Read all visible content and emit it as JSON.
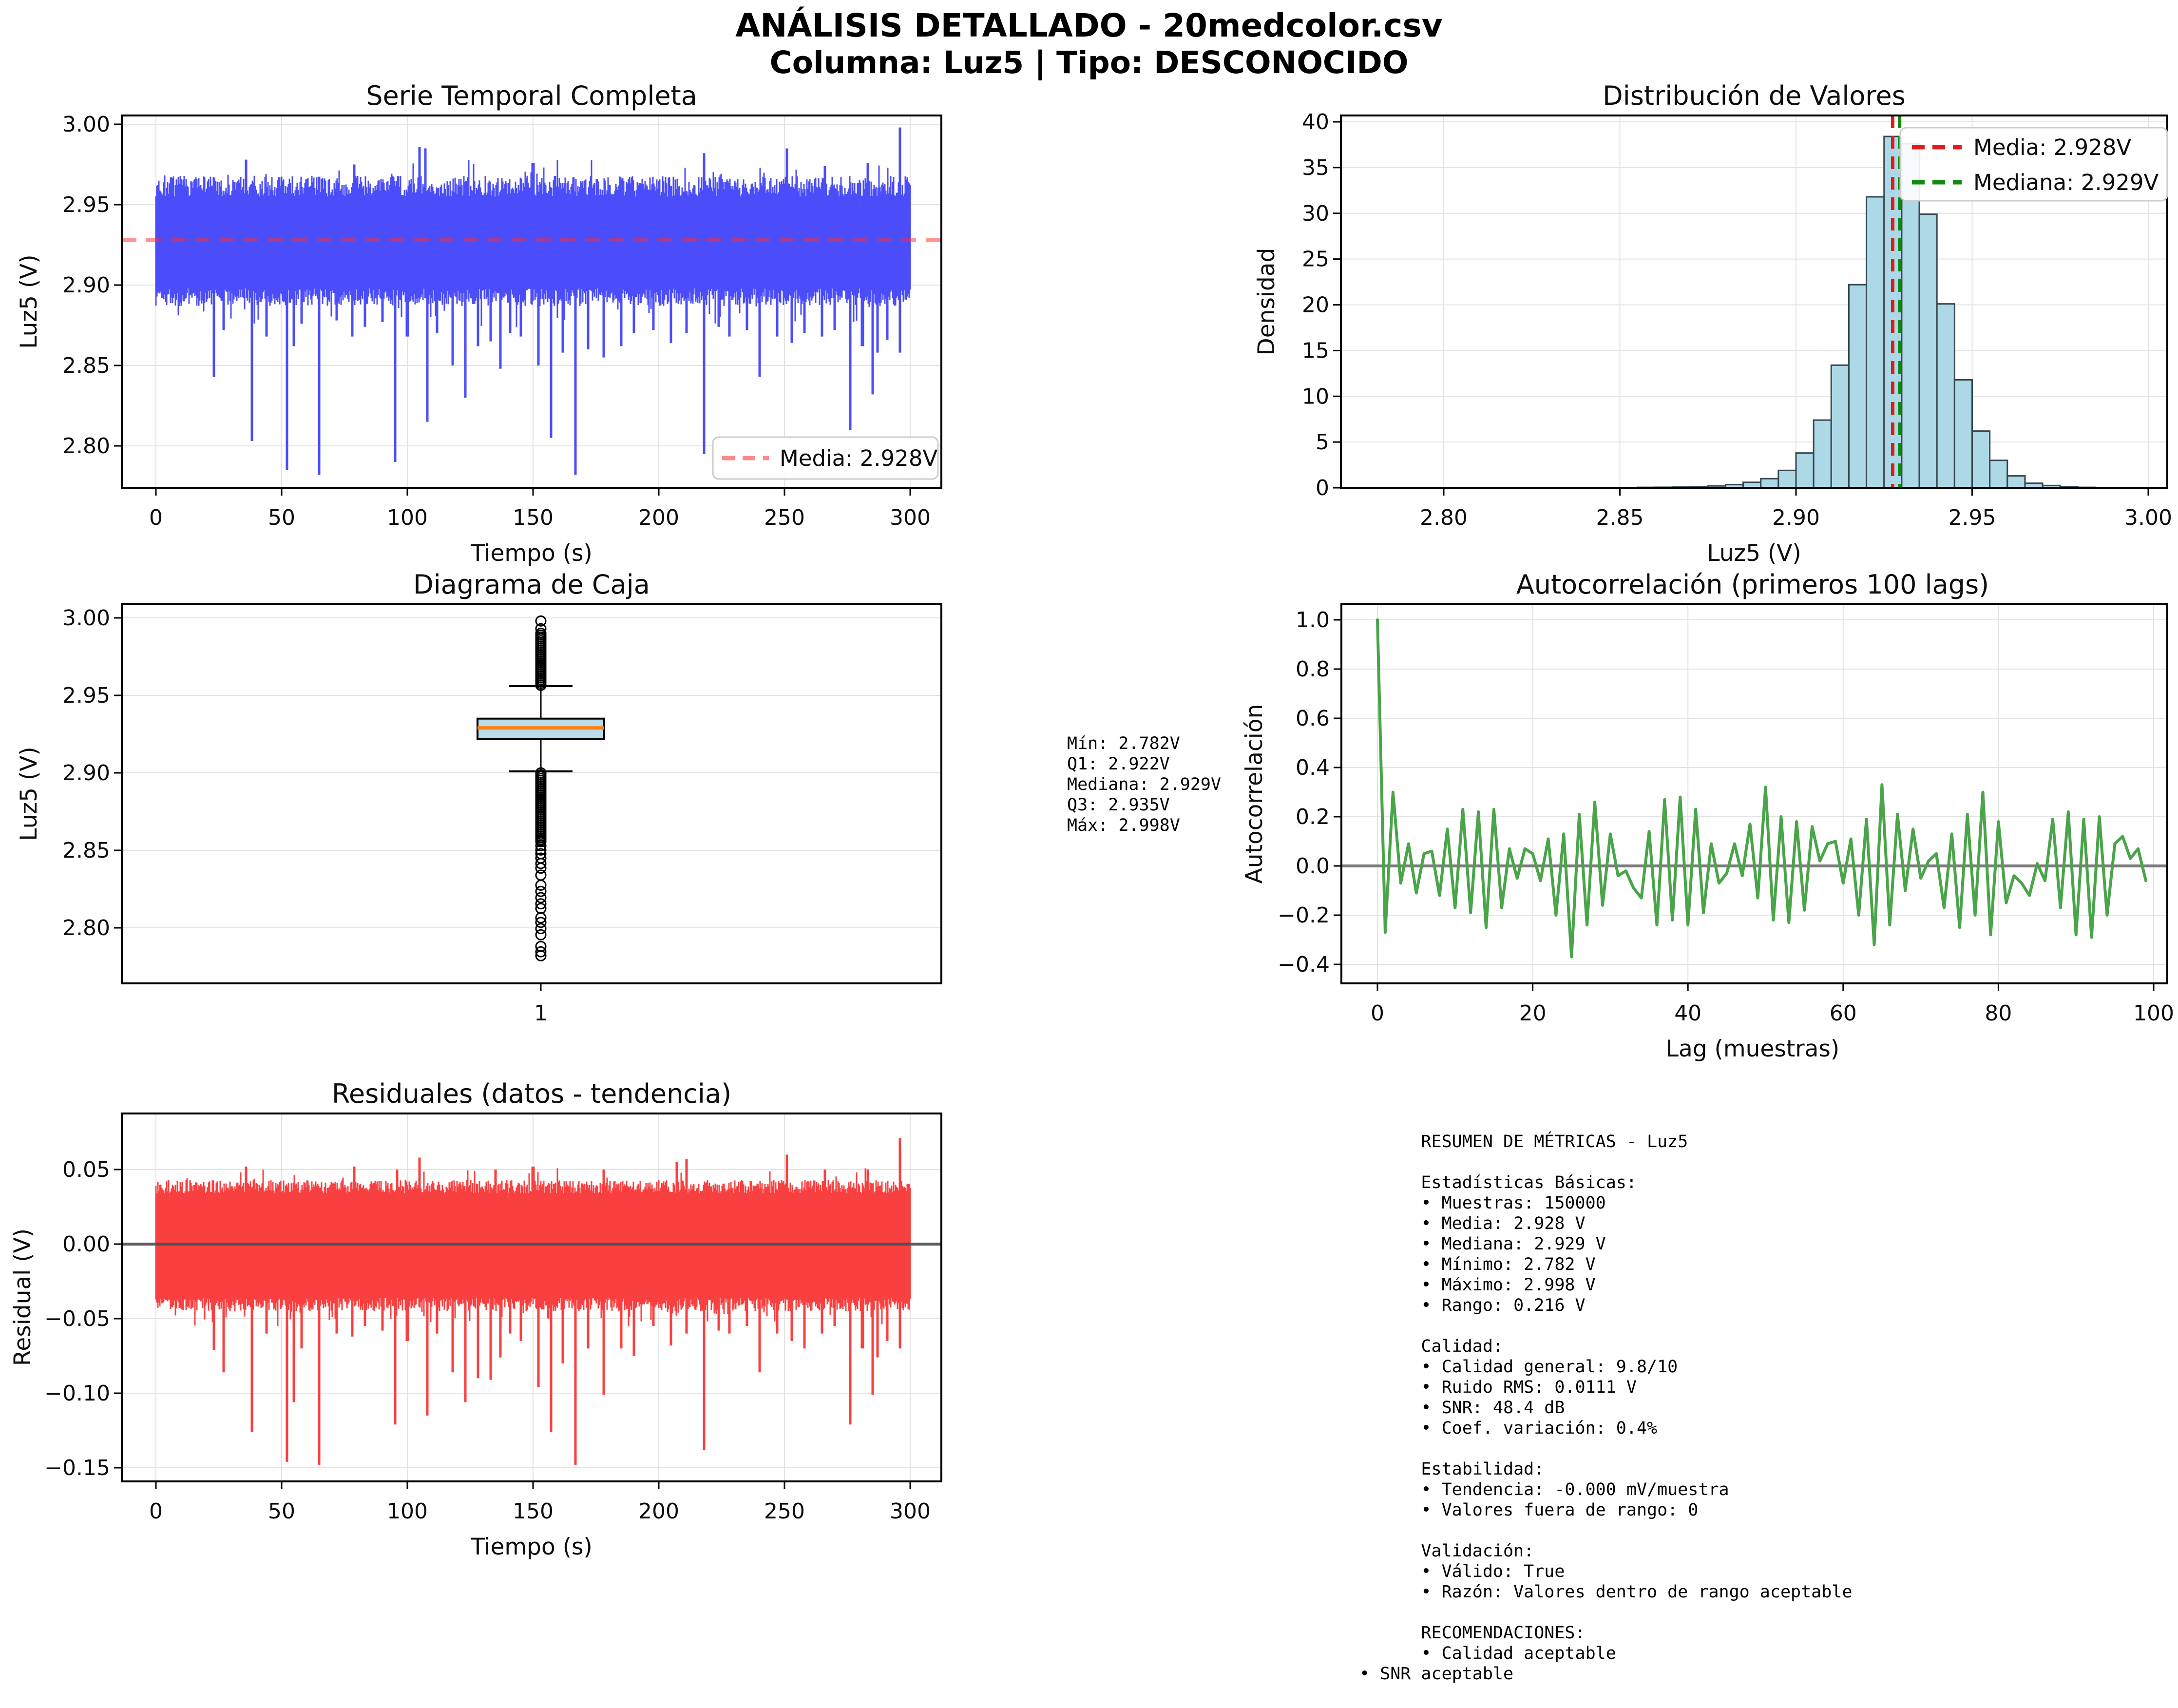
{
  "header": {
    "title1": "ANÁLISIS DETALLADO - 20medcolor.csv",
    "title2": "Columna: Luz5 | Tipo: DESCONOCIDO"
  },
  "colors": {
    "series_blue": "#4b4dfa",
    "mean_dash_red": "#ff2a2a",
    "mean_dash_on_white": "#fa8a8a",
    "hist_fill": "#add8e6",
    "hist_edge": "#37474f",
    "hist_mean_red": "#e01b1c",
    "hist_median_green": "#0f8a0f",
    "box_fill": "#b8dcea",
    "box_median_orange": "#ff7f0e",
    "acf_green": "#4aa44a",
    "residual_red": "#f94040",
    "zero_line_gray": "#7a7a7a",
    "grid_gray": "#e3e3e3",
    "spine_black": "#000000",
    "legend_border": "#cccccc"
  },
  "box_stats_text": "Mín: 2.782V\nQ1: 2.922V\nMediana: 2.929V\nQ3: 2.935V\nMáx: 2.998V",
  "metrics_text": "      RESUMEN DE MÉTRICAS - Luz5\n\n      Estadísticas Básicas:\n      • Muestras: 150000\n      • Media: 2.928 V\n      • Mediana: 2.929 V\n      • Mínimo: 2.782 V\n      • Máximo: 2.998 V\n      • Rango: 0.216 V\n\n      Calidad:\n      • Calidad general: 9.8/10\n      • Ruido RMS: 0.0111 V\n      • SNR: 48.4 dB\n      • Coef. variación: 0.4%\n\n      Estabilidad:\n      • Tendencia: -0.000 mV/muestra\n      • Valores fuera de rango: 0\n\n      Validación:\n      • Válido: True\n      • Razón: Valores dentro de rango aceptable\n\n      RECOMENDACIONES:\n      • Calidad aceptable\n• SNR aceptable",
  "chart_data": [
    {
      "id": "ts",
      "type": "line-band",
      "title": "Serie Temporal Completa",
      "xlabel": "Tiempo (s)",
      "ylabel": "Luz5 (V)",
      "xlim": [
        -13.6,
        312.4
      ],
      "ylim": [
        2.774,
        3.006
      ],
      "xticks": {
        "values": [
          0,
          50,
          100,
          150,
          200,
          250,
          300
        ],
        "labels": [
          "0",
          "50",
          "100",
          "150",
          "200",
          "250",
          "300"
        ]
      },
      "yticks": {
        "values": [
          2.8,
          2.85,
          2.9,
          2.95,
          3.0
        ],
        "labels": [
          "2.80",
          "2.85",
          "2.90",
          "2.95",
          "3.00"
        ]
      },
      "mean": 2.928,
      "legend": [
        {
          "label": "Media: 2.928V",
          "color": "#fa8a8a",
          "dash": true
        }
      ],
      "band": {
        "seed": 7,
        "x_start": 0,
        "x_end": 300,
        "top_base": 2.955,
        "top_jitter": 0.013,
        "top_extra": 0.014,
        "bottom_base": 2.898,
        "bottom_jitter": 0.011,
        "bottom_extra": 0.016
      },
      "spikes_down": [
        [
          23,
          2.843
        ],
        [
          27,
          2.872
        ],
        [
          38,
          2.803
        ],
        [
          44,
          2.868
        ],
        [
          52,
          2.785
        ],
        [
          55,
          2.862
        ],
        [
          58,
          2.876
        ],
        [
          65,
          2.782
        ],
        [
          72,
          2.878
        ],
        [
          78,
          2.868
        ],
        [
          83,
          2.874
        ],
        [
          90,
          2.877
        ],
        [
          95,
          2.79
        ],
        [
          100,
          2.868
        ],
        [
          108,
          2.815
        ],
        [
          112,
          2.87
        ],
        [
          118,
          2.85
        ],
        [
          123,
          2.83
        ],
        [
          128,
          2.862
        ],
        [
          133,
          2.865
        ],
        [
          137,
          2.848
        ],
        [
          141,
          2.87
        ],
        [
          145,
          2.868
        ],
        [
          152,
          2.85
        ],
        [
          157,
          2.805
        ],
        [
          162,
          2.858
        ],
        [
          167,
          2.782
        ],
        [
          172,
          2.86
        ],
        [
          178,
          2.855
        ],
        [
          185,
          2.862
        ],
        [
          190,
          2.87
        ],
        [
          198,
          2.872
        ],
        [
          205,
          2.864
        ],
        [
          211,
          2.87
        ],
        [
          218,
          2.795
        ],
        [
          224,
          2.874
        ],
        [
          228,
          2.868
        ],
        [
          235,
          2.872
        ],
        [
          240,
          2.843
        ],
        [
          247,
          2.868
        ],
        [
          253,
          2.864
        ],
        [
          258,
          2.87
        ],
        [
          265,
          2.868
        ],
        [
          270,
          2.872
        ],
        [
          276,
          2.81
        ],
        [
          281,
          2.862
        ],
        [
          285,
          2.832
        ],
        [
          287,
          2.858
        ],
        [
          291,
          2.866
        ],
        [
          296,
          2.858
        ]
      ],
      "spikes_up": [
        [
          36,
          2.978
        ],
        [
          79,
          2.975
        ],
        [
          105,
          2.986
        ],
        [
          107,
          2.985
        ],
        [
          150,
          2.976
        ],
        [
          218,
          2.982
        ],
        [
          251,
          2.985
        ],
        [
          266,
          2.974
        ],
        [
          283,
          2.976
        ],
        [
          296,
          2.998
        ]
      ]
    },
    {
      "id": "hist",
      "type": "histogram",
      "title": "Distribución de Valores",
      "xlabel": "Luz5 (V)",
      "ylabel": "Densidad",
      "bin_width": 0.005,
      "bins_left": [
        2.845,
        2.85,
        2.855,
        2.86,
        2.865,
        2.87,
        2.875,
        2.88,
        2.885,
        2.89,
        2.895,
        2.9,
        2.905,
        2.91,
        2.915,
        2.92,
        2.925,
        2.93,
        2.935,
        2.94,
        2.945,
        2.95,
        2.955,
        2.96,
        2.965,
        2.97,
        2.975,
        2.98
      ],
      "densities": [
        0.03,
        0.03,
        0.05,
        0.06,
        0.08,
        0.12,
        0.2,
        0.35,
        0.6,
        1.0,
        1.9,
        3.8,
        7.4,
        13.4,
        22.2,
        31.8,
        38.4,
        37.6,
        29.9,
        20.1,
        11.8,
        6.2,
        3.0,
        1.3,
        0.5,
        0.25,
        0.12,
        0.05
      ],
      "xticks": {
        "values": [
          2.8,
          2.85,
          2.9,
          2.95,
          3.0
        ],
        "labels": [
          "2.80",
          "2.85",
          "2.90",
          "2.95",
          "3.00"
        ]
      },
      "yticks": {
        "values": [
          0,
          5,
          10,
          15,
          20,
          25,
          30,
          35,
          40
        ],
        "labels": [
          "0",
          "5",
          "10",
          "15",
          "20",
          "25",
          "30",
          "35",
          "40"
        ]
      },
      "mean": 2.928,
      "median": 2.929,
      "legend": [
        {
          "label": "Media: 2.928V",
          "color": "#e01b1c",
          "dash": true
        },
        {
          "label": "Mediana: 2.929V",
          "color": "#0f8a0f",
          "dash": true
        }
      ]
    },
    {
      "id": "box",
      "type": "boxplot",
      "title": "Diagrama de Caja",
      "ylabel": "Luz5 (V)",
      "q1": 2.922,
      "median": 2.929,
      "q3": 2.935,
      "whisker_low": 2.901,
      "whisker_high": 2.956,
      "min": 2.782,
      "max": 2.998,
      "xticks": {
        "values": [
          1
        ],
        "labels": [
          "1"
        ]
      },
      "yticks": {
        "values": [
          2.8,
          2.85,
          2.9,
          2.95,
          3.0
        ],
        "labels": [
          "2.80",
          "2.85",
          "2.90",
          "2.95",
          "3.00"
        ]
      },
      "outliers_high": [
        2.9565,
        2.9577,
        2.9589,
        2.9601,
        2.9613,
        2.9625,
        2.9637,
        2.9649,
        2.9661,
        2.9673,
        2.9685,
        2.9697,
        2.9709,
        2.9721,
        2.9733,
        2.9745,
        2.9757,
        2.9769,
        2.9781,
        2.9793,
        2.9805,
        2.9817,
        2.9829,
        2.9841,
        2.9853,
        2.9865,
        2.9877,
        2.9889,
        2.9901,
        2.993,
        2.998
      ],
      "outliers_low": [
        2.9,
        2.8988,
        2.8976,
        2.8964,
        2.8952,
        2.894,
        2.8928,
        2.8916,
        2.8904,
        2.8892,
        2.888,
        2.8868,
        2.8856,
        2.8844,
        2.8832,
        2.882,
        2.8808,
        2.8796,
        2.8784,
        2.8772,
        2.876,
        2.8748,
        2.8736,
        2.8724,
        2.8712,
        2.87,
        2.8688,
        2.8676,
        2.8664,
        2.8652,
        2.864,
        2.8628,
        2.8616,
        2.8604,
        2.8592,
        2.858,
        2.8568,
        2.8556,
        2.853,
        2.8502,
        2.8478,
        2.845,
        2.8415,
        2.8385,
        2.834,
        2.8275,
        2.8235,
        2.8195,
        2.8155,
        2.8125,
        2.8065,
        2.8035,
        2.7995,
        2.7955,
        2.788,
        2.7845,
        2.782
      ]
    },
    {
      "id": "acf",
      "type": "line",
      "title": "Autocorrelación (primeros 100 lags)",
      "xlabel": "Lag (muestras)",
      "ylabel": "Autocorrelación",
      "xticks": {
        "values": [
          0,
          20,
          40,
          60,
          80,
          100
        ],
        "labels": [
          "0",
          "20",
          "40",
          "60",
          "80",
          "100"
        ]
      },
      "yticks": {
        "values": [
          1.0,
          0.8,
          0.6,
          0.4,
          0.2,
          0.0,
          -0.2,
          -0.4
        ],
        "labels": [
          "1.0",
          "0.8",
          "0.6",
          "0.4",
          "0.2",
          "0.0",
          "−0.2",
          "−0.4"
        ]
      },
      "zero_line": true,
      "values": [
        1.0,
        -0.27,
        0.3,
        -0.07,
        0.09,
        -0.11,
        0.05,
        0.06,
        -0.12,
        0.15,
        -0.17,
        0.23,
        -0.19,
        0.22,
        -0.25,
        0.23,
        -0.17,
        0.07,
        -0.05,
        0.07,
        0.05,
        -0.06,
        0.11,
        -0.2,
        0.13,
        -0.37,
        0.21,
        -0.24,
        0.26,
        -0.16,
        0.13,
        -0.04,
        -0.02,
        -0.09,
        -0.13,
        0.14,
        -0.24,
        0.27,
        -0.22,
        0.28,
        -0.24,
        0.23,
        -0.19,
        0.09,
        -0.07,
        -0.03,
        0.09,
        -0.04,
        0.17,
        -0.13,
        0.32,
        -0.22,
        0.2,
        -0.23,
        0.18,
        -0.18,
        0.16,
        0.02,
        0.09,
        0.1,
        -0.07,
        0.11,
        -0.2,
        0.19,
        -0.32,
        0.33,
        -0.24,
        0.21,
        -0.1,
        0.15,
        -0.05,
        0.02,
        0.05,
        -0.17,
        0.13,
        -0.25,
        0.21,
        -0.2,
        0.3,
        -0.28,
        0.18,
        -0.15,
        -0.04,
        -0.07,
        -0.12,
        0.01,
        -0.06,
        0.19,
        -0.17,
        0.22,
        -0.28,
        0.19,
        -0.29,
        0.2,
        -0.2,
        0.09,
        0.12,
        0.03,
        0.07,
        -0.06
      ]
    },
    {
      "id": "res",
      "type": "line-band",
      "title": "Residuales (datos - tendencia)",
      "xlabel": "Tiempo (s)",
      "ylabel": "Residual (V)",
      "xticks": {
        "values": [
          0,
          50,
          100,
          150,
          200,
          250,
          300
        ],
        "labels": [
          "0",
          "50",
          "100",
          "150",
          "200",
          "250",
          "300"
        ]
      },
      "yticks": {
        "values": [
          0.05,
          0.0,
          -0.05,
          -0.1,
          -0.15
        ],
        "labels": [
          "0.05",
          "0.00",
          "−0.05",
          "−0.10",
          "−0.15"
        ]
      },
      "zero_line": true,
      "band": {
        "seed": 13,
        "x_start": 0,
        "x_end": 300,
        "top_base": 0.034,
        "top_jitter": 0.009,
        "top_extra": 0.012,
        "bottom_base": -0.036,
        "bottom_jitter": 0.009,
        "bottom_extra": 0.014
      },
      "spikes_down": [
        [
          23,
          -0.071
        ],
        [
          27,
          -0.086
        ],
        [
          38,
          -0.126
        ],
        [
          44,
          -0.06
        ],
        [
          52,
          -0.146
        ],
        [
          55,
          -0.106
        ],
        [
          58,
          -0.07
        ],
        [
          65,
          -0.148
        ],
        [
          72,
          -0.06
        ],
        [
          78,
          -0.062
        ],
        [
          83,
          -0.055
        ],
        [
          90,
          -0.058
        ],
        [
          95,
          -0.121
        ],
        [
          100,
          -0.065
        ],
        [
          108,
          -0.115
        ],
        [
          112,
          -0.06
        ],
        [
          118,
          -0.086
        ],
        [
          123,
          -0.106
        ],
        [
          128,
          -0.09
        ],
        [
          133,
          -0.091
        ],
        [
          137,
          -0.076
        ],
        [
          141,
          -0.06
        ],
        [
          145,
          -0.065
        ],
        [
          152,
          -0.096
        ],
        [
          157,
          -0.126
        ],
        [
          162,
          -0.08
        ],
        [
          167,
          -0.148
        ],
        [
          172,
          -0.07
        ],
        [
          178,
          -0.101
        ],
        [
          185,
          -0.07
        ],
        [
          190,
          -0.075
        ],
        [
          198,
          -0.055
        ],
        [
          205,
          -0.068
        ],
        [
          211,
          -0.06
        ],
        [
          218,
          -0.138
        ],
        [
          224,
          -0.058
        ],
        [
          228,
          -0.06
        ],
        [
          235,
          -0.055
        ],
        [
          240,
          -0.086
        ],
        [
          247,
          -0.06
        ],
        [
          253,
          -0.065
        ],
        [
          258,
          -0.07
        ],
        [
          265,
          -0.06
        ],
        [
          270,
          -0.055
        ],
        [
          276,
          -0.121
        ],
        [
          281,
          -0.07
        ],
        [
          285,
          -0.101
        ],
        [
          287,
          -0.076
        ],
        [
          291,
          -0.065
        ],
        [
          296,
          -0.07
        ]
      ],
      "spikes_up": [
        [
          36,
          0.052
        ],
        [
          79,
          0.052
        ],
        [
          96,
          0.05
        ],
        [
          105,
          0.058
        ],
        [
          135,
          0.05
        ],
        [
          150,
          0.052
        ],
        [
          178,
          0.05
        ],
        [
          207,
          0.055
        ],
        [
          211,
          0.057
        ],
        [
          251,
          0.06
        ],
        [
          266,
          0.05
        ],
        [
          283,
          0.05
        ],
        [
          296,
          0.071
        ]
      ]
    }
  ]
}
